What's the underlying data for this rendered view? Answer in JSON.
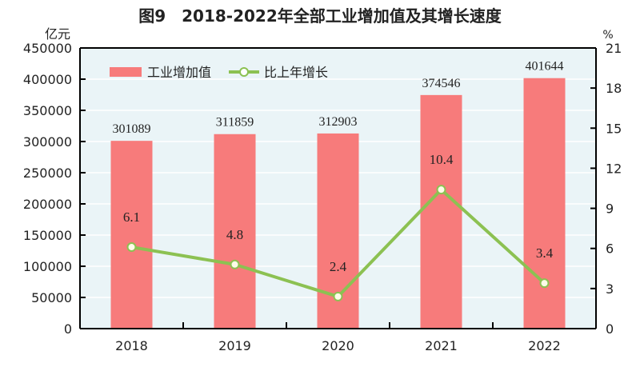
{
  "chart_data": {
    "type": "bar+line",
    "title": "图9　2018-2022年全部工业增加值及其增长速度",
    "categories": [
      "2018",
      "2019",
      "2020",
      "2021",
      "2022"
    ],
    "series": [
      {
        "name": "工业增加值",
        "type": "bar",
        "axis": "left",
        "values": [
          301089,
          311859,
          312903,
          374546,
          401644
        ],
        "color": "#f77b7b"
      },
      {
        "name": "比上年增长",
        "type": "line",
        "axis": "right",
        "values": [
          6.1,
          4.8,
          2.4,
          10.4,
          3.4
        ],
        "color": "#8cc152"
      }
    ],
    "y_left": {
      "unit": "亿元",
      "range": [
        0,
        450000
      ],
      "ticks": [
        0,
        50000,
        100000,
        150000,
        200000,
        250000,
        300000,
        350000,
        400000,
        450000
      ]
    },
    "y_right": {
      "unit": "%",
      "range": [
        0,
        21
      ],
      "ticks": [
        0,
        3,
        6,
        9,
        12,
        15,
        18,
        21
      ]
    },
    "legend": "top-left",
    "grid": true,
    "plot_background": "#eaf4f7"
  }
}
